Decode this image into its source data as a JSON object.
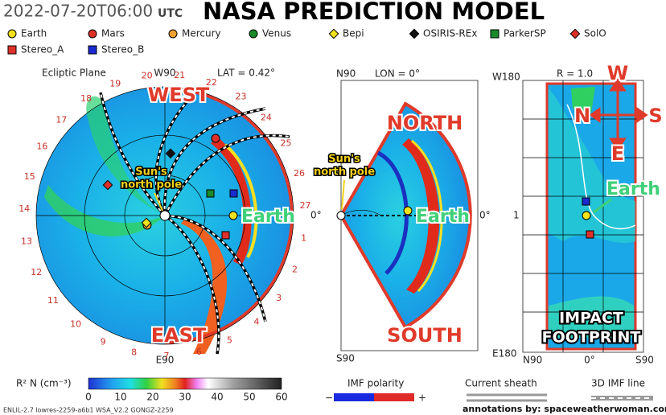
{
  "header": {
    "timestamp": "2022-07-20T06:00",
    "timezone": "UTC",
    "title": "NASA PREDICTION MODEL"
  },
  "legend": [
    {
      "label": "Earth",
      "color": "#f2e21a",
      "shape": "circle"
    },
    {
      "label": "Mars",
      "color": "#e0302a",
      "shape": "circle"
    },
    {
      "label": "Mercury",
      "color": "#f0a030",
      "shape": "circle"
    },
    {
      "label": "Venus",
      "color": "#1a8a2a",
      "shape": "circle"
    },
    {
      "label": "Bepi",
      "color": "#f2e21a",
      "shape": "diamond"
    },
    {
      "label": "OSIRIS-REx",
      "color": "#111111",
      "shape": "diamond"
    },
    {
      "label": "ParkerSP",
      "color": "#1a8a2a",
      "shape": "square"
    },
    {
      "label": "SolO",
      "color": "#e0302a",
      "shape": "diamond"
    },
    {
      "label": "Stereo_A",
      "color": "#e0302a",
      "shape": "square"
    },
    {
      "label": "Stereo_B",
      "color": "#1a2ad0",
      "shape": "square"
    }
  ],
  "ecliptic": {
    "title": "Ecliptic Plane",
    "top": "W90",
    "lat": "LAT = 0.42°",
    "bottom": "E90",
    "right": "0°",
    "longitude_labels": [
      1,
      2,
      3,
      4,
      5,
      6,
      7,
      8,
      9,
      10,
      11,
      12,
      13,
      14,
      15,
      16,
      17,
      18,
      19,
      20,
      21,
      22,
      23,
      24,
      25,
      26,
      27
    ],
    "west": "WEST",
    "east": "EAST",
    "sun_note": [
      "Sun's",
      "north pole"
    ],
    "earth": "Earth"
  },
  "meridional": {
    "top": "N90",
    "lon": "LON = 0°",
    "bottom": "S90",
    "right": "0°",
    "north": "NORTH",
    "south": "SOUTH",
    "sun_note": [
      "Sun's",
      "north pole"
    ],
    "earth": "Earth"
  },
  "footprint": {
    "top": "W180",
    "r": "R = 1.0",
    "bottom": "E180",
    "left": "1",
    "x_labels": [
      "N90",
      "0°",
      "S90"
    ],
    "compass": {
      "up": "W",
      "left": "N",
      "right": "S",
      "down": "E"
    },
    "earth": "Earth",
    "impact": [
      "IMPACT",
      "FOOTPRINT"
    ]
  },
  "colorbar": {
    "label": "R² N (cm⁻³)",
    "ticks": [
      0,
      10,
      20,
      30,
      40,
      50,
      60
    ]
  },
  "imf": {
    "label": "IMF polarity",
    "minus": "−",
    "plus": "+"
  },
  "sheath": {
    "label": "Current sheath"
  },
  "imf_line": {
    "label": "3D IMF line"
  },
  "footer": {
    "model": "ENLIL-2.7 lowres-2259-a6b1 WSA_V2.2 GONGZ-2259",
    "credit": "annotations by: spaceweatherwoman.com"
  }
}
